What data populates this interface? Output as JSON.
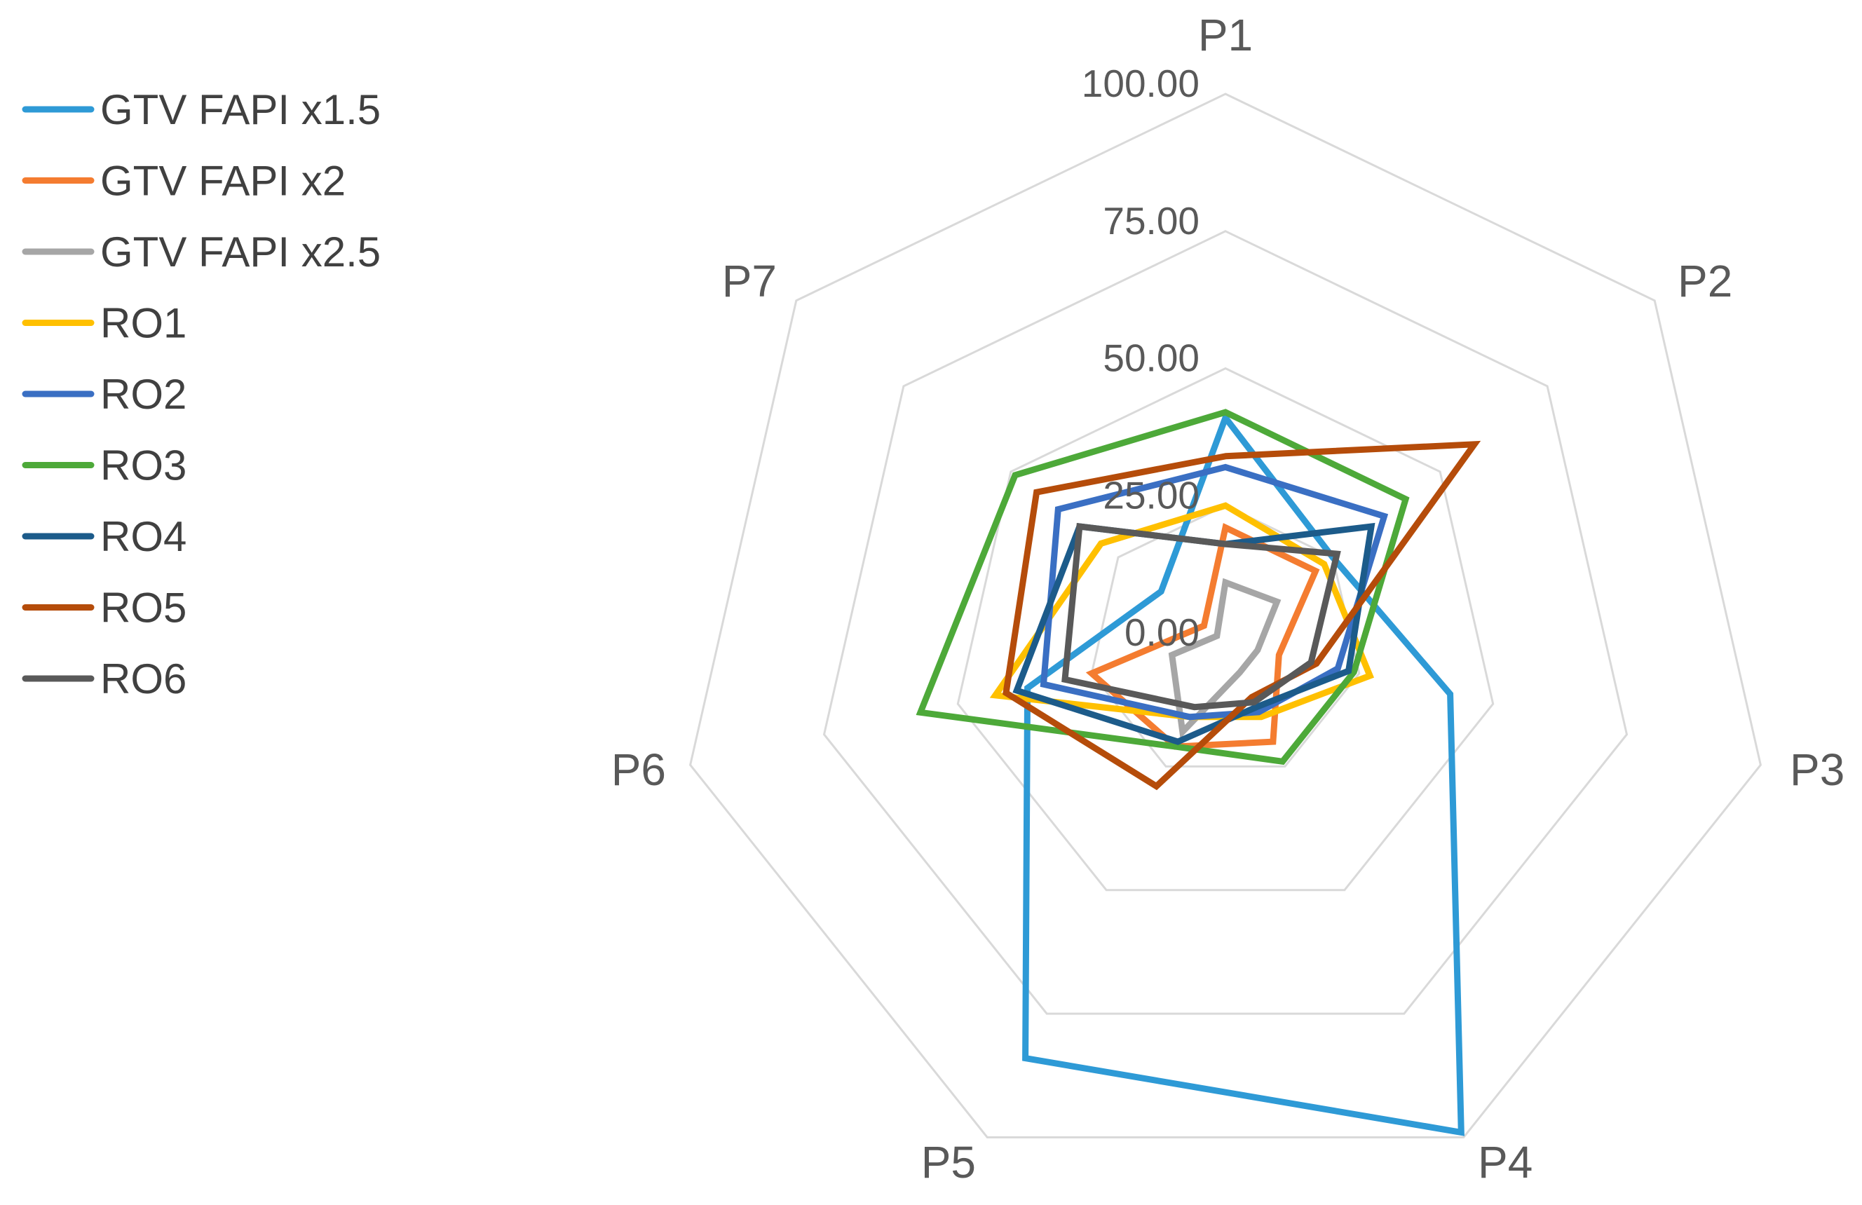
{
  "chart_data": {
    "type": "radar",
    "axes": [
      "P1",
      "P2",
      "P3",
      "P4",
      "P5",
      "P6",
      "P7"
    ],
    "rlim": [
      0,
      100
    ],
    "ticks": [
      "0.00",
      "25.00",
      "50.00",
      "75.00",
      "100.00"
    ],
    "tick_values": [
      0,
      25,
      50,
      75,
      100
    ],
    "grid": true,
    "legend_position": "top-left",
    "series": [
      {
        "name": "GTV FAPI x1.5",
        "color": "#2E9AD6",
        "values": [
          41,
          25,
          42,
          99,
          84,
          37,
          15
        ]
      },
      {
        "name": "GTV FAPI x2",
        "color": "#F47C30",
        "values": [
          21,
          21,
          10,
          20,
          21,
          25,
          5
        ]
      },
      {
        "name": "GTV FAPI x2.5",
        "color": "#A6A6A6",
        "values": [
          11,
          12,
          6,
          6,
          18,
          10,
          2
        ]
      },
      {
        "name": "RO1",
        "color": "#FFC000",
        "values": [
          25,
          23,
          27,
          15,
          15,
          43,
          29
        ]
      },
      {
        "name": "RO2",
        "color": "#3A6FC3",
        "values": [
          32,
          37,
          21,
          14,
          15,
          34,
          39
        ]
      },
      {
        "name": "RO3",
        "color": "#4DA939",
        "values": [
          42,
          42,
          24,
          24,
          21,
          57,
          49
        ]
      },
      {
        "name": "RO4",
        "color": "#1C5B8A",
        "values": [
          18,
          34,
          23,
          13,
          20,
          39,
          34
        ]
      },
      {
        "name": "RO5",
        "color": "#B54C0A",
        "values": [
          34,
          58,
          17,
          11,
          29,
          41,
          44
        ]
      },
      {
        "name": "RO6",
        "color": "#595959",
        "values": [
          18,
          26,
          16,
          12,
          13,
          30,
          34
        ]
      }
    ]
  }
}
